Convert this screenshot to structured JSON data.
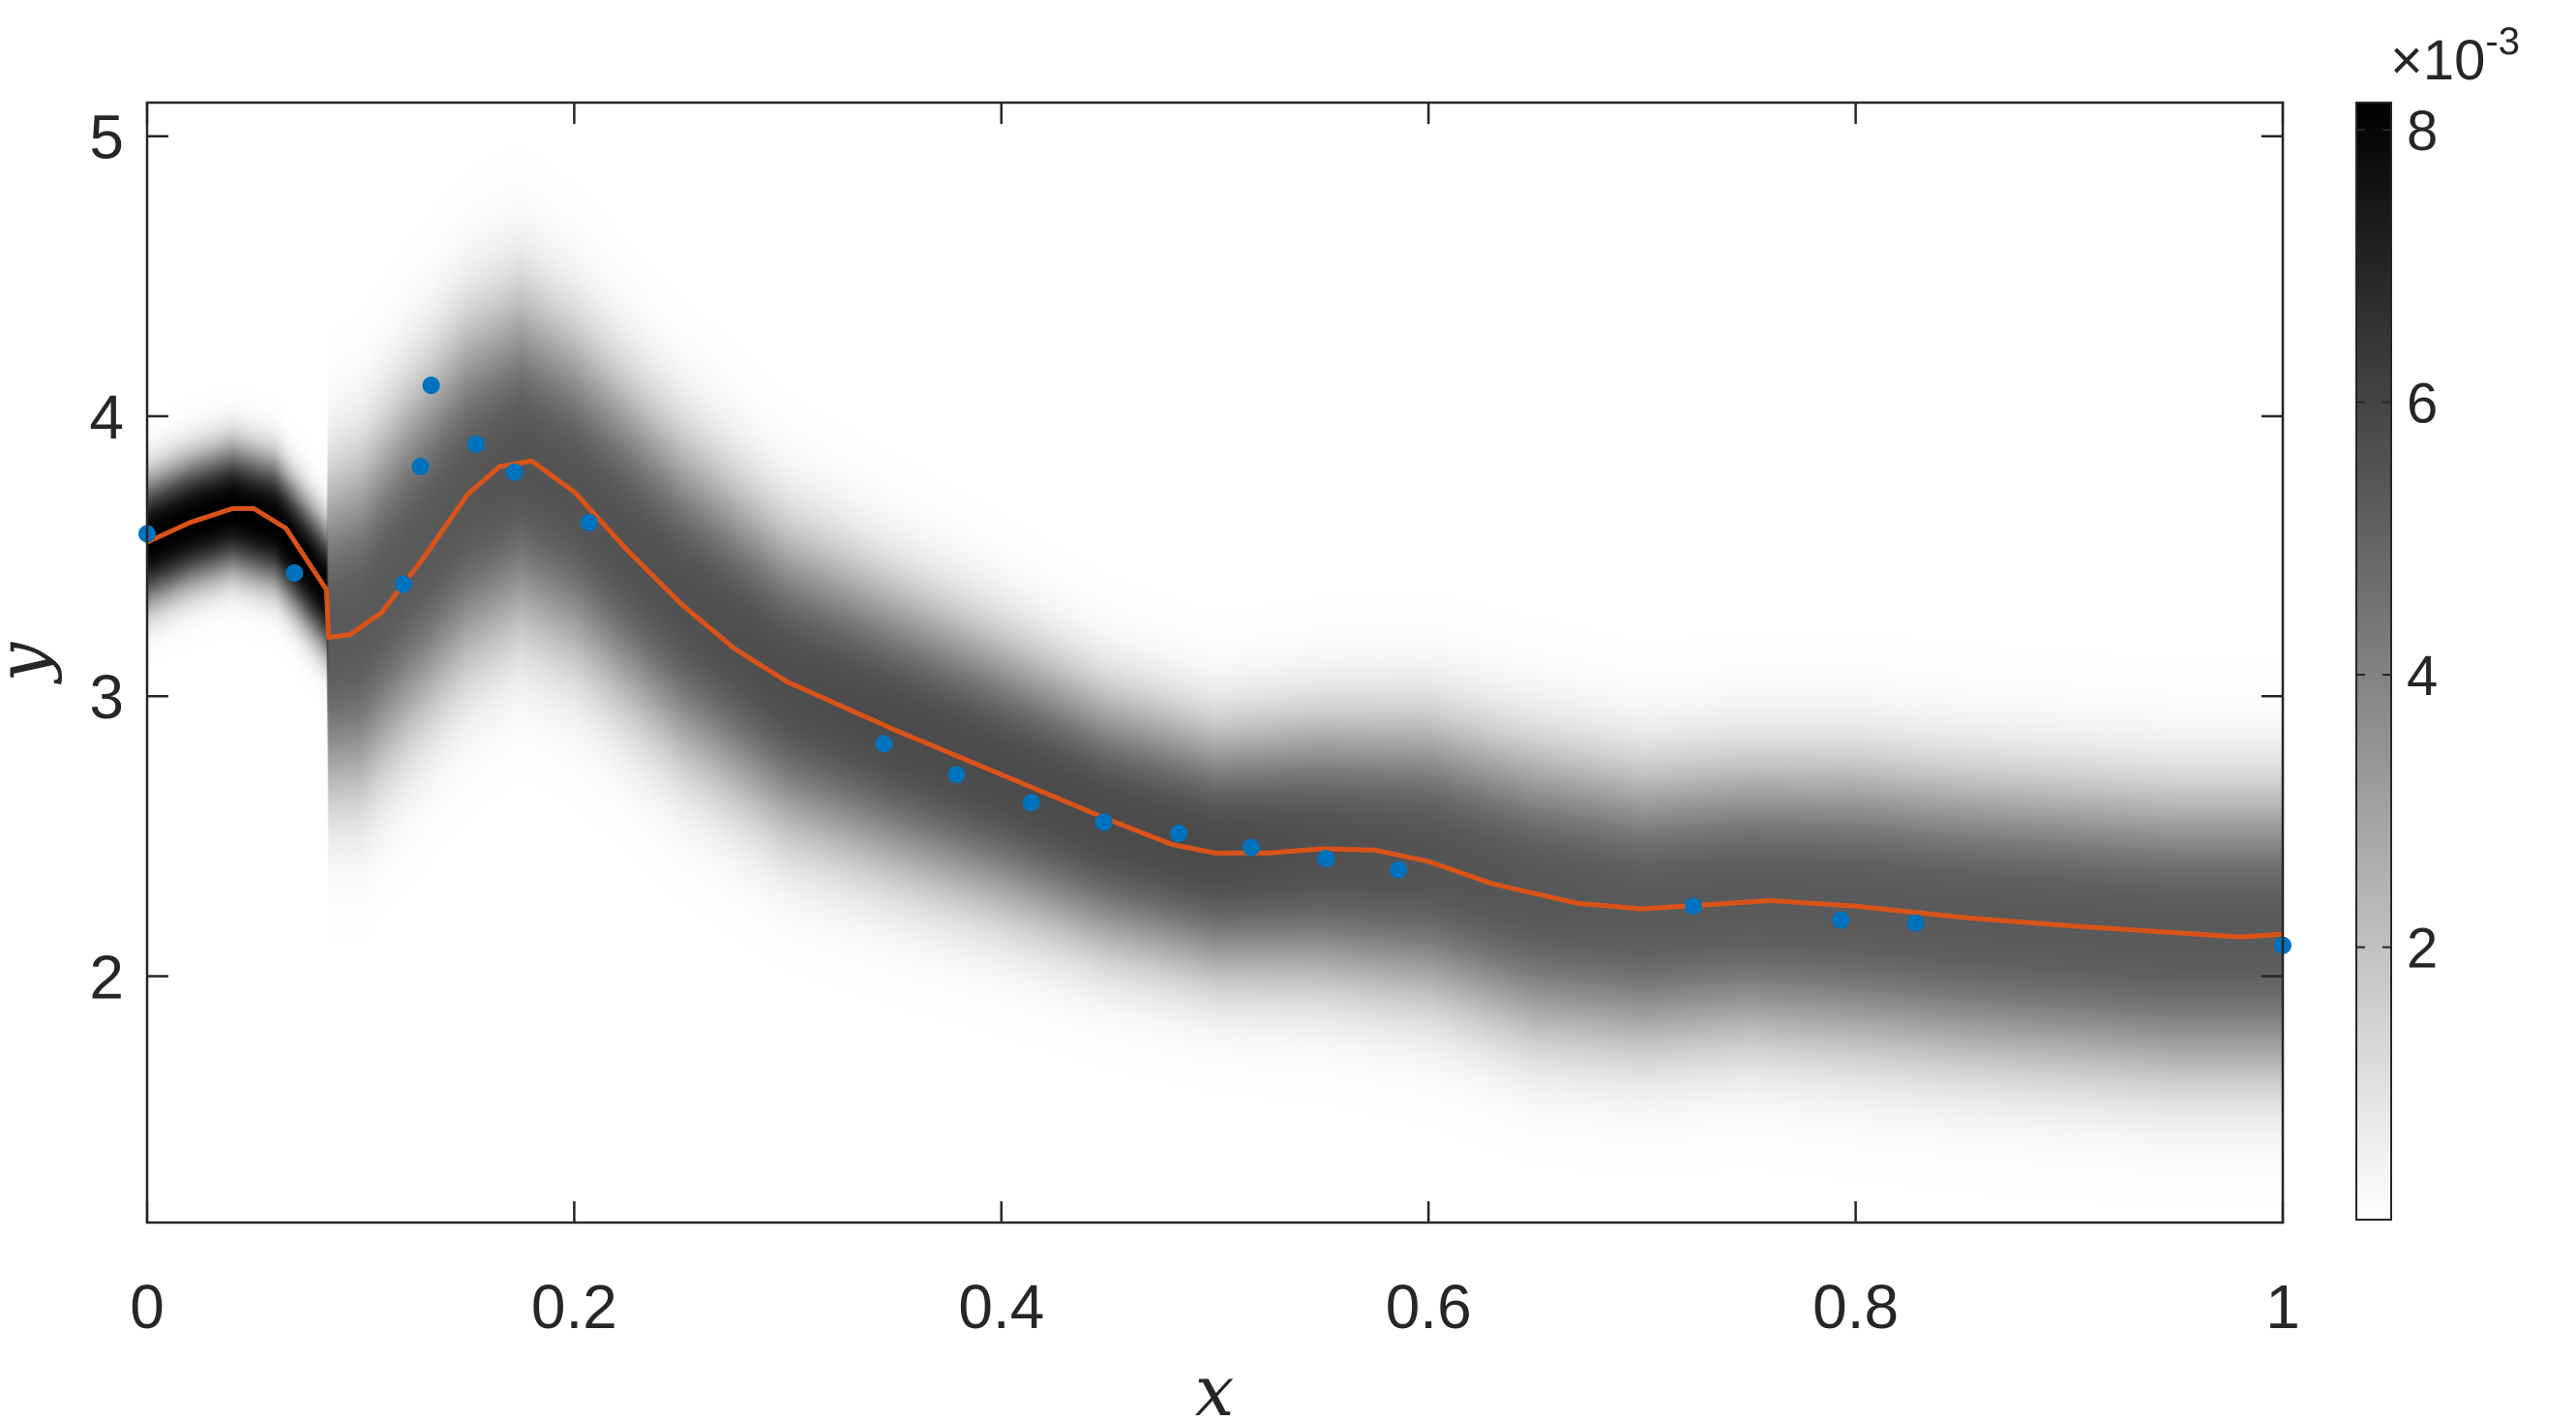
{
  "chart_data": {
    "type": "heatmap",
    "title": "",
    "xlabel": "x",
    "ylabel": "y",
    "xlim": [
      0,
      1
    ],
    "ylim": [
      1.12,
      5.12
    ],
    "x_ticks": [
      0,
      0.2,
      0.4,
      0.6,
      0.8,
      1
    ],
    "x_tick_labels": [
      "0",
      "0.2",
      "0.4",
      "0.6",
      "0.8",
      "1"
    ],
    "y_ticks": [
      2,
      3,
      4,
      5
    ],
    "y_tick_labels": [
      "2",
      "3",
      "4",
      "5"
    ],
    "colorbar": {
      "range": [
        0,
        0.0082
      ],
      "ticks": [
        0.002,
        0.004,
        0.006,
        0.008
      ],
      "tick_labels": [
        "2",
        "4",
        "6",
        "8"
      ],
      "multiplier_base": "×10",
      "multiplier_exponent": "-3",
      "colormap": "gray-reversed"
    },
    "grid": false,
    "series": [
      {
        "kind": "density",
        "color": "#000000",
        "x": [
          0,
          0.02,
          0.04,
          0.06,
          0.084,
          0.085,
          0.1,
          0.12,
          0.15,
          0.175,
          0.2,
          0.25,
          0.3,
          0.35,
          0.4,
          0.45,
          0.5,
          0.55,
          0.6,
          0.65,
          0.7,
          0.75,
          0.8,
          0.85,
          0.9,
          0.95,
          1.0
        ],
        "mean": [
          3.55,
          3.62,
          3.67,
          3.62,
          3.38,
          3.21,
          3.25,
          3.45,
          3.72,
          3.84,
          3.72,
          3.35,
          3.05,
          2.88,
          2.72,
          2.55,
          2.44,
          2.45,
          2.42,
          2.3,
          2.24,
          2.27,
          2.25,
          2.21,
          2.18,
          2.15,
          2.15
        ],
        "sigma": [
          0.17,
          0.17,
          0.17,
          0.17,
          0.17,
          0.42,
          0.44,
          0.45,
          0.45,
          0.44,
          0.43,
          0.42,
          0.4,
          0.38,
          0.36,
          0.34,
          0.33,
          0.35,
          0.37,
          0.38,
          0.37,
          0.37,
          0.38,
          0.38,
          0.38,
          0.38,
          0.38
        ],
        "peak": [
          0.0082,
          0.0082,
          0.0082,
          0.0082,
          0.0082,
          0.0053,
          0.0053,
          0.0053,
          0.0054,
          0.0055,
          0.0055,
          0.0056,
          0.0057,
          0.0058,
          0.0058,
          0.0058,
          0.0058,
          0.0056,
          0.0055,
          0.0054,
          0.0053,
          0.0053,
          0.0053,
          0.0053,
          0.0053,
          0.0053,
          0.0053
        ]
      },
      {
        "kind": "line",
        "color": "#D95319",
        "x": [
          0,
          0.02,
          0.04,
          0.05,
          0.065,
          0.084,
          0.085,
          0.095,
          0.11,
          0.13,
          0.15,
          0.165,
          0.18,
          0.2,
          0.225,
          0.25,
          0.275,
          0.3,
          0.35,
          0.4,
          0.45,
          0.48,
          0.5,
          0.525,
          0.55,
          0.575,
          0.6,
          0.63,
          0.67,
          0.7,
          0.73,
          0.76,
          0.8,
          0.85,
          0.9,
          0.95,
          0.98,
          1.0
        ],
        "y": [
          3.55,
          3.62,
          3.67,
          3.67,
          3.6,
          3.38,
          3.21,
          3.22,
          3.3,
          3.5,
          3.72,
          3.82,
          3.84,
          3.73,
          3.52,
          3.33,
          3.17,
          3.05,
          2.88,
          2.72,
          2.56,
          2.47,
          2.44,
          2.44,
          2.455,
          2.45,
          2.41,
          2.33,
          2.26,
          2.24,
          2.255,
          2.27,
          2.25,
          2.21,
          2.18,
          2.155,
          2.14,
          2.15
        ]
      },
      {
        "kind": "scatter",
        "color": "#0072BD",
        "x": [
          0,
          0.069,
          0.12,
          0.128,
          0.133,
          0.154,
          0.172,
          0.207,
          0.345,
          0.379,
          0.414,
          0.448,
          0.483,
          0.517,
          0.552,
          0.586,
          0.724,
          0.793,
          0.828,
          1.0
        ],
        "y": [
          3.58,
          3.44,
          3.4,
          3.82,
          4.11,
          3.9,
          3.8,
          3.62,
          2.83,
          2.72,
          2.62,
          2.55,
          2.51,
          2.46,
          2.42,
          2.38,
          2.25,
          2.2,
          2.19,
          2.11
        ]
      }
    ]
  }
}
